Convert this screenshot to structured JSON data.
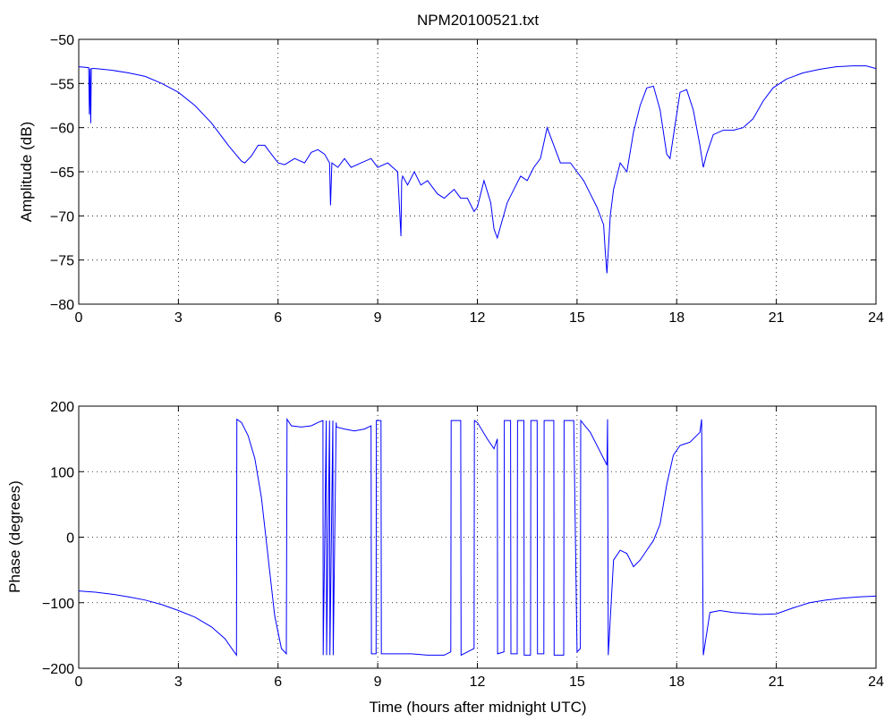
{
  "figure_title": "NPM20100521.txt",
  "chart_data": [
    {
      "type": "line",
      "title": "NPM20100521.txt",
      "xlabel": "",
      "ylabel": "Amplitude (dB)",
      "xlim": [
        0,
        24
      ],
      "ylim": [
        -80,
        -50
      ],
      "xticks": [
        0,
        3,
        6,
        9,
        12,
        15,
        18,
        21,
        24
      ],
      "yticks": [
        -80,
        -75,
        -70,
        -65,
        -60,
        -55,
        -50
      ],
      "xtick_labels": [
        "0",
        "3",
        "6",
        "9",
        "12",
        "15",
        "18",
        "21",
        "24"
      ],
      "ytick_labels": [
        "−80",
        "−75",
        "−70",
        "−65",
        "−60",
        "−55",
        "−50"
      ],
      "grid": true,
      "line_color": "#0000ff",
      "series": [
        {
          "x": [
            0,
            0.3,
            0.32,
            0.34,
            0.36,
            0.38,
            0.4,
            0.5,
            1.0,
            1.5,
            2.0,
            2.5,
            3.0,
            3.5,
            4.0,
            4.5,
            4.9,
            5.0,
            5.2,
            5.4,
            5.6,
            5.8,
            6.0,
            6.2,
            6.5,
            6.8,
            7.0,
            7.2,
            7.4,
            7.55,
            7.58,
            7.62,
            7.8,
            8.0,
            8.2,
            8.5,
            8.8,
            9.0,
            9.3,
            9.6,
            9.7,
            9.72,
            9.75,
            9.9,
            10.1,
            10.3,
            10.5,
            10.8,
            11.0,
            11.3,
            11.5,
            11.7,
            11.9,
            12.0,
            12.2,
            12.4,
            12.5,
            12.6,
            12.75,
            12.9,
            13.1,
            13.3,
            13.5,
            13.7,
            13.9,
            14.1,
            14.3,
            14.5,
            14.8,
            15.0,
            15.2,
            15.4,
            15.6,
            15.8,
            15.85,
            15.9,
            15.95,
            16.0,
            16.1,
            16.3,
            16.5,
            16.7,
            16.9,
            17.1,
            17.3,
            17.5,
            17.7,
            17.8,
            17.9,
            18.1,
            18.3,
            18.5,
            18.7,
            18.8,
            18.9,
            19.1,
            19.4,
            19.7,
            20.0,
            20.3,
            20.6,
            20.9,
            21.3,
            21.8,
            22.3,
            22.8,
            23.3,
            23.7,
            24.0
          ],
          "y": [
            -53.1,
            -53.2,
            -58.5,
            -53.3,
            -59.5,
            -53.3,
            -53.3,
            -53.3,
            -53.5,
            -53.8,
            -54.2,
            -55.0,
            -56.0,
            -57.5,
            -59.5,
            -62.0,
            -63.8,
            -64.0,
            -63.2,
            -62.0,
            -62.0,
            -63.0,
            -64.0,
            -64.2,
            -63.5,
            -64.0,
            -62.8,
            -62.5,
            -63.0,
            -64.0,
            -68.8,
            -64.0,
            -64.5,
            -63.5,
            -64.5,
            -64.0,
            -63.5,
            -64.5,
            -64.0,
            -65.0,
            -72.3,
            -66.0,
            -65.5,
            -66.5,
            -65.0,
            -66.5,
            -66.0,
            -67.5,
            -68.0,
            -67.0,
            -68.0,
            -68.0,
            -69.5,
            -69.0,
            -66.0,
            -68.5,
            -71.5,
            -72.5,
            -70.5,
            -68.5,
            -67.0,
            -65.5,
            -66.0,
            -64.5,
            -63.5,
            -60.0,
            -62.0,
            -64.0,
            -64.0,
            -65.0,
            -66.0,
            -67.5,
            -69.0,
            -71.0,
            -74.0,
            -76.5,
            -73.5,
            -70.0,
            -67.0,
            -64.0,
            -65.0,
            -60.5,
            -57.5,
            -55.5,
            -55.3,
            -58.0,
            -63.0,
            -63.5,
            -61.0,
            -56.0,
            -55.7,
            -58.0,
            -62.0,
            -64.5,
            -63.0,
            -60.8,
            -60.3,
            -60.3,
            -60.0,
            -59.0,
            -57.0,
            -55.5,
            -54.5,
            -53.8,
            -53.4,
            -53.1,
            -53.0,
            -53.0,
            -53.3
          ]
        }
      ]
    },
    {
      "type": "line",
      "title": "",
      "xlabel": "Time (hours after midnight UTC)",
      "ylabel": "Phase (degrees)",
      "xlim": [
        0,
        24
      ],
      "ylim": [
        -200,
        200
      ],
      "xticks": [
        0,
        3,
        6,
        9,
        12,
        15,
        18,
        21,
        24
      ],
      "yticks": [
        -200,
        -100,
        0,
        100,
        200
      ],
      "xtick_labels": [
        "0",
        "3",
        "6",
        "9",
        "12",
        "15",
        "18",
        "21",
        "24"
      ],
      "ytick_labels": [
        "−200",
        "−100",
        "0",
        "100",
        "200"
      ],
      "grid": true,
      "line_color": "#0000ff",
      "series": [
        {
          "x": [
            0,
            0.5,
            1.0,
            1.5,
            2.0,
            2.5,
            3.0,
            3.5,
            4.0,
            4.4,
            4.75,
            4.76,
            4.9,
            5.1,
            5.3,
            5.5,
            5.7,
            5.9,
            6.1,
            6.25,
            6.27,
            6.4,
            6.7,
            7.0,
            7.2,
            7.35,
            7.36,
            7.45,
            7.46,
            7.55,
            7.56,
            7.65,
            7.66,
            7.75,
            7.76,
            8.0,
            8.3,
            8.6,
            8.8,
            8.81,
            8.95,
            8.96,
            9.1,
            9.11,
            9.5,
            10.0,
            10.5,
            11.0,
            11.2,
            11.21,
            11.5,
            11.51,
            11.9,
            11.91,
            12.0,
            12.3,
            12.5,
            12.6,
            12.61,
            12.8,
            12.81,
            13.0,
            13.01,
            13.2,
            13.21,
            13.4,
            13.41,
            13.6,
            13.61,
            13.8,
            13.81,
            14.0,
            14.01,
            14.3,
            14.31,
            14.6,
            14.61,
            14.9,
            15.0,
            15.1,
            15.11,
            15.4,
            15.7,
            15.9,
            15.92,
            15.94,
            16.1,
            16.3,
            16.5,
            16.7,
            16.9,
            17.1,
            17.3,
            17.5,
            17.7,
            17.9,
            18.1,
            18.4,
            18.7,
            18.75,
            18.8,
            19.0,
            19.3,
            19.7,
            20.0,
            20.5,
            21.0,
            21.5,
            22.0,
            22.5,
            23.0,
            23.5,
            24.0
          ],
          "y": [
            -82,
            -84,
            -87,
            -91,
            -96,
            -103,
            -112,
            -122,
            -137,
            -155,
            -180,
            180,
            175,
            155,
            120,
            60,
            -30,
            -120,
            -170,
            -178,
            180,
            170,
            168,
            170,
            175,
            178,
            -180,
            178,
            -180,
            178,
            -180,
            178,
            -180,
            175,
            168,
            165,
            162,
            165,
            170,
            -178,
            -178,
            178,
            178,
            -178,
            -178,
            -178,
            -180,
            -180,
            -175,
            178,
            178,
            -180,
            -170,
            178,
            175,
            150,
            135,
            150,
            -178,
            -175,
            178,
            178,
            -178,
            -178,
            178,
            178,
            -180,
            -180,
            178,
            178,
            -178,
            -178,
            178,
            178,
            -180,
            -180,
            178,
            178,
            -175,
            -170,
            178,
            160,
            130,
            110,
            180,
            -180,
            -35,
            -20,
            -25,
            -45,
            -35,
            -20,
            -5,
            20,
            80,
            125,
            140,
            145,
            160,
            180,
            -180,
            -115,
            -112,
            -115,
            -116,
            -118,
            -117,
            -108,
            -100,
            -96,
            -93,
            -91,
            -90
          ]
        }
      ]
    }
  ]
}
